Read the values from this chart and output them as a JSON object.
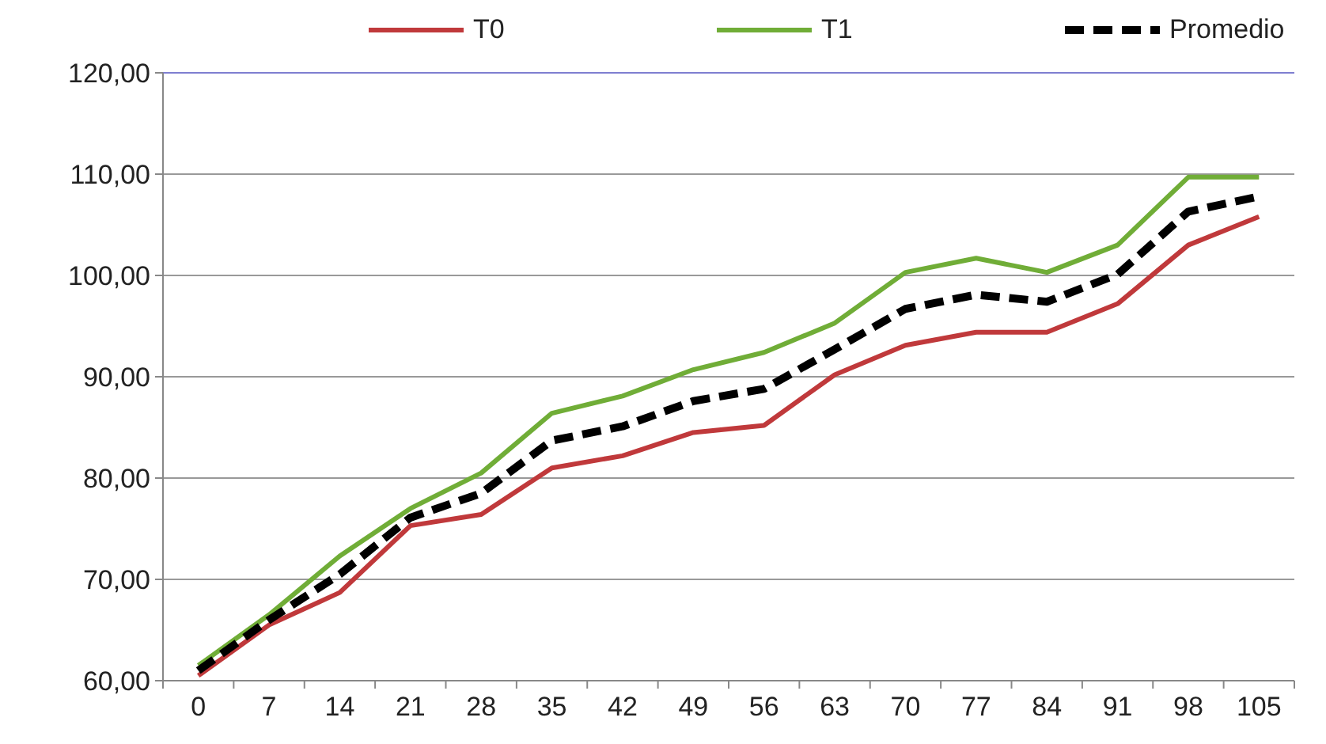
{
  "chart_data": {
    "type": "line",
    "categories": [
      "0",
      "7",
      "14",
      "21",
      "28",
      "35",
      "42",
      "49",
      "56",
      "63",
      "70",
      "77",
      "84",
      "91",
      "98",
      "105"
    ],
    "series": [
      {
        "name": "T0",
        "color": "#c0393b",
        "values": [
          60.5,
          65.5,
          68.7,
          75.3,
          76.4,
          81,
          82.2,
          84.5,
          85.2,
          90.2,
          93.1,
          94.4,
          94.4,
          97.2,
          103,
          105.8
        ]
      },
      {
        "name": "T1",
        "color": "#70ad37",
        "values": [
          61.5,
          66.5,
          72.3,
          77,
          80.5,
          86.4,
          88.1,
          90.7,
          92.4,
          95.3,
          100.3,
          101.7,
          100.3,
          103,
          109.7,
          109.7
        ]
      },
      {
        "name": "Promedio",
        "color": "#000000",
        "line_style": "dashed",
        "values": [
          61,
          66,
          70.5,
          76.1,
          78.5,
          83.7,
          85.1,
          87.6,
          88.8,
          92.7,
          96.7,
          98.1,
          97.4,
          100.1,
          106.3,
          107.8
        ]
      }
    ],
    "ylim": [
      60,
      120
    ],
    "yticks": [
      {
        "value": 60,
        "label": "60,00"
      },
      {
        "value": 70,
        "label": "70,00"
      },
      {
        "value": 80,
        "label": "80,00"
      },
      {
        "value": 90,
        "label": "90,00"
      },
      {
        "value": 100,
        "label": "100,00"
      },
      {
        "value": 110,
        "label": "110,00"
      },
      {
        "value": 120,
        "label": "120,00"
      }
    ],
    "grid": "y",
    "legend": "top",
    "marker": "none"
  }
}
